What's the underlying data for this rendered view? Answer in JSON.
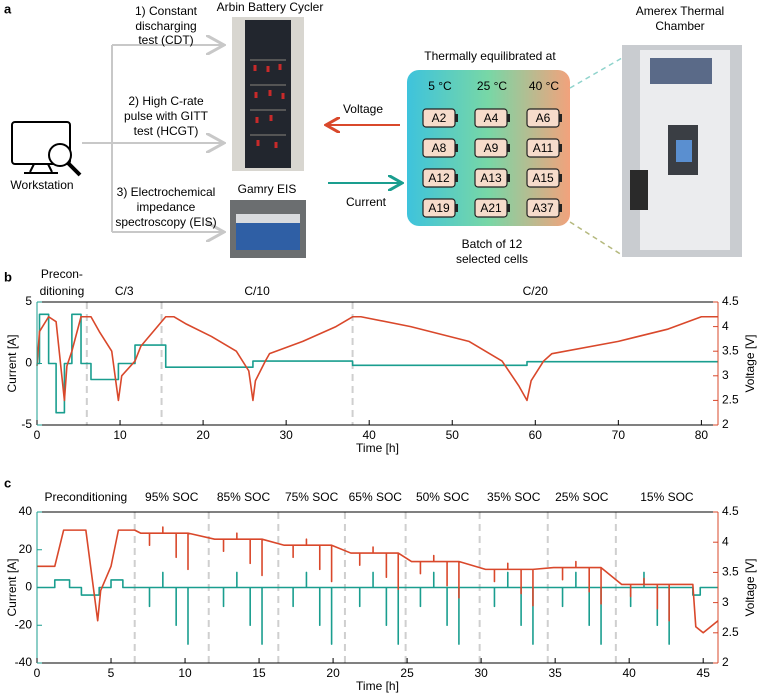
{
  "diagram": {
    "panel_label": "a",
    "workstation": "Workstation",
    "tests": [
      [
        "1) Constant",
        "discharging",
        "test (CDT)"
      ],
      [
        "2) High C-rate",
        "pulse with GITT",
        "test (HCGT)"
      ],
      [
        "3) Electrochemical",
        "impedance",
        "spectroscopy (EIS)"
      ]
    ],
    "cycler": "Arbin Battery Cycler",
    "eis": "Gamry EIS",
    "voltage_arrow": "Voltage",
    "current_arrow": "Current",
    "box_title": "Thermally equilibrated at",
    "temperatures": [
      "5 °C",
      "25 °C",
      "40 °C"
    ],
    "cells": [
      [
        "A2",
        "A4",
        "A6"
      ],
      [
        "A8",
        "A9",
        "A11"
      ],
      [
        "A12",
        "A13",
        "A15"
      ],
      [
        "A19",
        "A21",
        "A37"
      ]
    ],
    "batch": [
      "Batch of 12",
      "selected cells"
    ],
    "chamber": [
      "Amerex Thermal",
      "Chamber"
    ]
  },
  "chart_data": [
    {
      "type": "line",
      "panel_label": "b",
      "xlabel": "Time [h]",
      "ylabel": "Current [A]",
      "y2label": "Voltage [V]",
      "xlim": [
        0,
        82
      ],
      "xticks": [
        0,
        10,
        20,
        30,
        40,
        50,
        60,
        70,
        80
      ],
      "ylim": [
        -5,
        5
      ],
      "yticks": [
        -5,
        0,
        5
      ],
      "y2lim": [
        2,
        4.5
      ],
      "y2ticks": [
        2,
        2.5,
        3,
        3.5,
        4,
        4.5
      ],
      "phase_labels": [
        [
          "Precon-",
          "ditioning"
        ],
        [
          "C/3"
        ],
        [
          "C/10"
        ],
        [
          "C/20"
        ]
      ],
      "phase_bounds": [
        6,
        15,
        38
      ],
      "series": [
        {
          "color": "#1a9e8f",
          "x": [
            0,
            0.3,
            0.3,
            1.4,
            1.4,
            2.3,
            2.3,
            3.3,
            3.3,
            4.2,
            4.2,
            5.3,
            5.3,
            6.5,
            6.5,
            9.8,
            9.8,
            11.8,
            11.8,
            15.5,
            15.5,
            26,
            26,
            38,
            38,
            59,
            59,
            82
          ],
          "values": [
            0,
            0,
            4,
            4,
            0,
            0,
            -4,
            -4,
            0,
            0,
            4,
            4,
            0,
            0,
            -1.3,
            -1.3,
            0,
            0,
            1.5,
            1.5,
            -0.3,
            -0.3,
            0.2,
            0.2,
            -0.15,
            -0.15,
            0.15,
            0.15
          ]
        },
        {
          "color": "#d9482b",
          "axis": "y2",
          "x": [
            0,
            0.3,
            1.4,
            2.3,
            3.3,
            3.6,
            4.2,
            5.3,
            6.5,
            7.5,
            9,
            9.8,
            10.2,
            11.8,
            12.5,
            14,
            15.5,
            16.5,
            18,
            21,
            24,
            25.5,
            26,
            26.3,
            27.5,
            28,
            32,
            36,
            38,
            39,
            45,
            52,
            56,
            58,
            59,
            59.5,
            61,
            62,
            70,
            76,
            80,
            82
          ],
          "values": [
            3.2,
            3.9,
            4.2,
            4.1,
            2.5,
            3.2,
            3.5,
            4.2,
            4.2,
            3.9,
            3.5,
            2.5,
            3.0,
            3.3,
            3.6,
            3.9,
            4.2,
            4.2,
            4.05,
            3.8,
            3.5,
            3.1,
            2.5,
            2.9,
            3.3,
            3.45,
            3.7,
            4.0,
            4.2,
            4.2,
            4.0,
            3.7,
            3.3,
            2.8,
            2.5,
            2.9,
            3.3,
            3.45,
            3.7,
            3.95,
            4.2,
            4.2
          ]
        }
      ]
    },
    {
      "type": "line",
      "panel_label": "c",
      "xlabel": "Time [h]",
      "ylabel": "Current [A]",
      "y2label": "Voltage [V]",
      "xlim": [
        0,
        46
      ],
      "xticks": [
        0,
        5,
        10,
        15,
        20,
        25,
        30,
        35,
        40,
        45
      ],
      "ylim": [
        -40,
        40
      ],
      "yticks": [
        -40,
        -20,
        0,
        20,
        40
      ],
      "y2lim": [
        2,
        4.5
      ],
      "y2ticks": [
        2,
        2.5,
        3,
        3.5,
        4,
        4.5
      ],
      "phase_labels": [
        [
          "Preconditioning"
        ],
        [
          "95% SOC"
        ],
        [
          "85% SOC"
        ],
        [
          "75% SOC"
        ],
        [
          "65% SOC"
        ],
        [
          "50% SOC"
        ],
        [
          "35% SOC"
        ],
        [
          "25% SOC"
        ],
        [
          "15% SOC"
        ]
      ],
      "phase_bounds": [
        6.6,
        11.6,
        16.3,
        20.8,
        24.9,
        29.9,
        34.5,
        39.1
      ],
      "series": [
        {
          "color": "#1a9e8f",
          "x": [
            0,
            1.2,
            1.2,
            2.2,
            2.2,
            3,
            3,
            4.2,
            4.2,
            5,
            5,
            5.8,
            5.8,
            7.6,
            7.6,
            7.6,
            8.5,
            8.5,
            8.5,
            9.4,
            9.4,
            9.4,
            10.2,
            10.2,
            10.2,
            12.6,
            12.6,
            12.6,
            13.5,
            13.5,
            13.5,
            14.4,
            14.4,
            14.4,
            15.2,
            15.2,
            15.2,
            17.3,
            17.3,
            17.3,
            18.2,
            18.2,
            18.2,
            19.1,
            19.1,
            19.1,
            19.9,
            19.9,
            19.9,
            21.8,
            21.8,
            21.8,
            22.7,
            22.7,
            22.7,
            23.6,
            23.6,
            23.6,
            24.4,
            24.4,
            24.4,
            25.9,
            25.9,
            25.9,
            26.8,
            26.8,
            26.8,
            27.7,
            27.7,
            27.7,
            28.5,
            28.5,
            28.5,
            30.9,
            30.9,
            30.9,
            31.8,
            31.8,
            31.8,
            32.7,
            32.7,
            32.7,
            33.5,
            33.5,
            33.5,
            35.5,
            35.5,
            35.5,
            36.4,
            36.4,
            36.4,
            37.3,
            37.3,
            37.3,
            38.1,
            38.1,
            38.1,
            40.1,
            40.1,
            40.1,
            41,
            41,
            41,
            41.9,
            41.9,
            41.9,
            42.7,
            42.7,
            42.7,
            44.3,
            44.3,
            44.8,
            44.8,
            46
          ],
          "values": [
            0,
            0,
            4,
            4,
            0,
            0,
            -4,
            -4,
            0,
            0,
            4,
            4,
            0,
            0,
            -10,
            0,
            0,
            8,
            0,
            0,
            -20,
            0,
            0,
            -30,
            0,
            0,
            -10,
            0,
            0,
            8,
            0,
            0,
            -20,
            0,
            0,
            -30,
            0,
            0,
            -10,
            0,
            0,
            8,
            0,
            0,
            -20,
            0,
            0,
            -30,
            0,
            0,
            -10,
            0,
            0,
            8,
            0,
            0,
            -20,
            0,
            0,
            -30,
            0,
            0,
            -10,
            0,
            0,
            8,
            0,
            0,
            -20,
            0,
            0,
            -30,
            0,
            0,
            -10,
            0,
            0,
            8,
            0,
            0,
            -20,
            0,
            0,
            -30,
            0,
            0,
            -10,
            0,
            0,
            8,
            0,
            0,
            -20,
            0,
            0,
            -30,
            0,
            0,
            -10,
            0,
            0,
            8,
            0,
            0,
            -20,
            0,
            0,
            -30,
            0,
            0,
            -4,
            -4,
            0,
            0
          ]
        },
        {
          "color": "#d9482b",
          "axis": "y2",
          "x": [
            0,
            1.2,
            1.8,
            3.3,
            4.1,
            4.3,
            5,
            5.5,
            6.6,
            7,
            7.6,
            7.6,
            7.6,
            8.5,
            8.5,
            8.5,
            9.4,
            9.4,
            9.4,
            10.2,
            10.2,
            10.2,
            12,
            12.6,
            12.6,
            12.6,
            13.5,
            13.5,
            13.5,
            14.4,
            14.4,
            14.4,
            15.2,
            15.2,
            15.2,
            16.7,
            17.3,
            17.3,
            17.3,
            18.2,
            18.2,
            18.2,
            19.1,
            19.1,
            19.1,
            19.9,
            19.9,
            19.9,
            21.2,
            21.8,
            21.8,
            21.8,
            22.7,
            22.7,
            22.7,
            23.6,
            23.6,
            23.6,
            24.4,
            24.4,
            24.4,
            25.3,
            25.9,
            25.9,
            25.9,
            26.8,
            26.8,
            26.8,
            27.7,
            27.7,
            27.7,
            28.5,
            28.5,
            28.5,
            30.3,
            30.9,
            30.9,
            30.9,
            31.8,
            31.8,
            31.8,
            32.7,
            32.7,
            32.7,
            33.5,
            33.5,
            33.5,
            34.9,
            35.5,
            35.5,
            35.5,
            36.4,
            36.4,
            36.4,
            37.3,
            37.3,
            37.3,
            38.1,
            38.1,
            38.1,
            39.5,
            40.1,
            40.1,
            40.1,
            41,
            41,
            41,
            41.9,
            41.9,
            41.9,
            42.7,
            42.7,
            42.7,
            44.3,
            44.5,
            45,
            46
          ],
          "values": [
            3.6,
            3.6,
            4.2,
            4.2,
            2.7,
            3.2,
            3.6,
            4.2,
            4.2,
            4.15,
            4.15,
            3.95,
            4.15,
            4.15,
            4.25,
            4.15,
            4.15,
            3.75,
            4.15,
            4.15,
            3.55,
            4.15,
            4.05,
            4.05,
            3.85,
            4.05,
            4.05,
            4.15,
            4.05,
            4.05,
            3.65,
            4.05,
            4.05,
            3.45,
            4.05,
            3.95,
            3.95,
            3.75,
            3.95,
            3.95,
            4.05,
            3.95,
            3.95,
            3.55,
            3.95,
            3.95,
            3.35,
            3.95,
            3.82,
            3.82,
            3.62,
            3.82,
            3.82,
            3.92,
            3.82,
            3.82,
            3.42,
            3.82,
            3.82,
            3.22,
            3.82,
            3.68,
            3.68,
            3.48,
            3.68,
            3.68,
            3.78,
            3.68,
            3.68,
            3.28,
            3.68,
            3.68,
            3.08,
            3.68,
            3.55,
            3.55,
            3.35,
            3.55,
            3.55,
            3.65,
            3.55,
            3.55,
            3.15,
            3.55,
            3.55,
            2.95,
            3.55,
            3.58,
            3.58,
            3.38,
            3.58,
            3.58,
            3.68,
            3.58,
            3.58,
            3.18,
            3.58,
            3.58,
            2.98,
            3.58,
            3.3,
            3.3,
            3.1,
            3.3,
            3.3,
            3.4,
            3.3,
            3.3,
            2.9,
            3.3,
            3.3,
            2.7,
            3.3,
            3.3,
            2.6,
            2.5,
            2.7
          ]
        }
      ]
    }
  ]
}
